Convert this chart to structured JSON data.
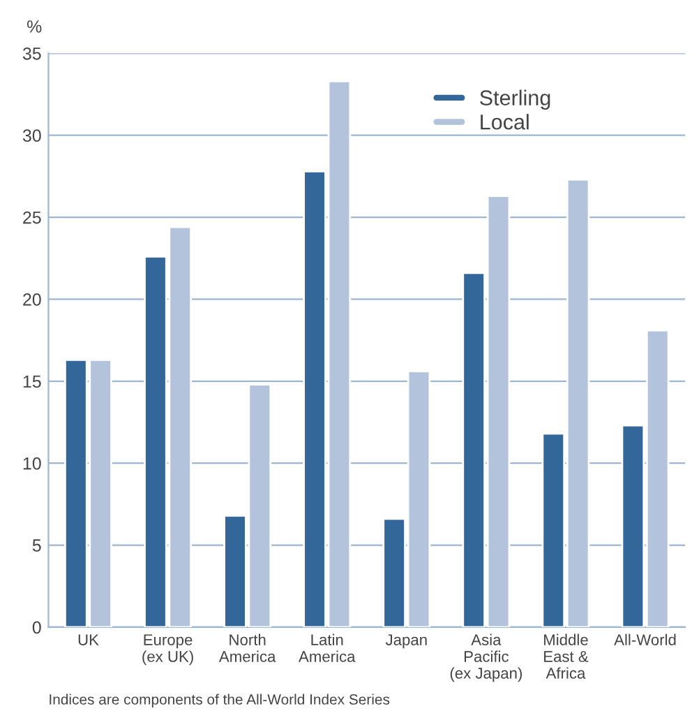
{
  "chart_data": {
    "type": "bar",
    "ylabel": "%",
    "categories": [
      "UK",
      "Europe\n(ex UK)",
      "North\nAmerica",
      "Latin\nAmerica",
      "Japan",
      "Asia\nPacific\n(ex Japan)",
      "Middle\nEast &\nAfrica",
      "All-World"
    ],
    "series": [
      {
        "name": "Sterling",
        "color": "#336699",
        "values": [
          16.3,
          22.6,
          6.8,
          27.8,
          6.6,
          21.6,
          11.8,
          12.3
        ]
      },
      {
        "name": "Local",
        "color": "#b4c3dc",
        "values": [
          16.3,
          24.4,
          14.8,
          33.3,
          15.6,
          26.3,
          27.3,
          18.1
        ]
      }
    ],
    "ylim": [
      0,
      35
    ],
    "yticks": [
      0,
      5,
      10,
      15,
      20,
      25,
      30,
      35
    ],
    "grid": "y",
    "legend": "top right",
    "annotations": [
      "Indices are components of the All-World Index Series"
    ]
  }
}
